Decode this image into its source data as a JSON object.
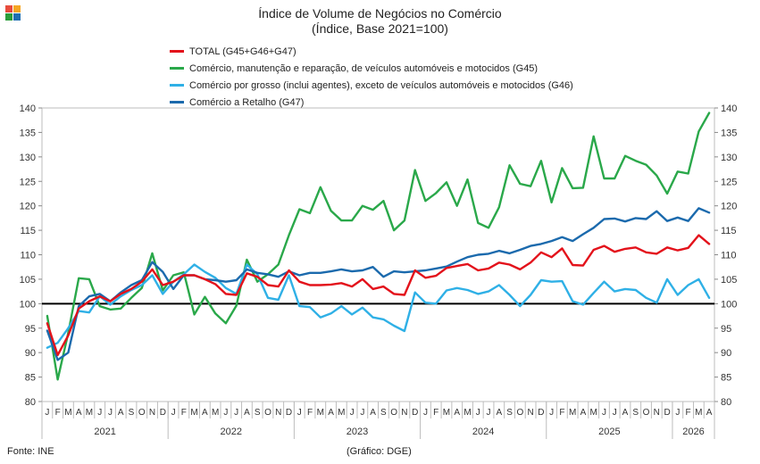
{
  "title": "Índice de Volume de Negócios no Comércio",
  "subtitle": "(Índice, Base 2021=100)",
  "source": "Fonte: INE",
  "credit": "(Gráfico: DGE)",
  "colors": {
    "logo": [
      "#e84c3d",
      "#f5a623",
      "#2a9d3a",
      "#1f6fb2"
    ]
  },
  "chart_data": {
    "type": "line",
    "ylim": [
      80,
      140
    ],
    "yticks": [
      80,
      85,
      90,
      95,
      100,
      105,
      110,
      115,
      120,
      125,
      130,
      135,
      140
    ],
    "reference_line": 100,
    "month_labels": [
      "J",
      "F",
      "M",
      "A",
      "M",
      "J",
      "J",
      "A",
      "S",
      "O",
      "N",
      "D",
      "J",
      "F",
      "M",
      "A",
      "M",
      "J",
      "J",
      "A",
      "S",
      "O",
      "N",
      "D",
      "J",
      "F",
      "M",
      "A",
      "M",
      "J",
      "J",
      "A",
      "S",
      "O",
      "N",
      "D",
      "J",
      "F",
      "M",
      "A",
      "M",
      "J",
      "J",
      "A",
      "S",
      "O",
      "N",
      "D",
      "J",
      "F",
      "M",
      "A",
      "M",
      "J",
      "J",
      "A",
      "S",
      "O",
      "N",
      "D",
      "J",
      "F",
      "M",
      "A"
    ],
    "years": [
      {
        "label": "2021",
        "months": 12
      },
      {
        "label": "2022",
        "months": 12
      },
      {
        "label": "2023",
        "months": 12
      },
      {
        "label": "2024",
        "months": 12
      },
      {
        "label": "2025",
        "months": 12
      },
      {
        "label": "2026",
        "months": 4
      }
    ],
    "series": [
      {
        "name": "TOTAL (G45+G46+G47)",
        "color": "#e3121b",
        "values": [
          96.0,
          89.5,
          93.5,
          99.0,
          100.5,
          101.5,
          100.5,
          102.0,
          103.0,
          104.5,
          107.0,
          103.8,
          104.5,
          105.8,
          105.8,
          105.0,
          104.0,
          102.0,
          101.8,
          106.2,
          105.5,
          103.8,
          103.5,
          106.8,
          104.5,
          103.8,
          103.8,
          103.9,
          104.2,
          103.5,
          105.0,
          103.0,
          103.5,
          102.0,
          101.8,
          106.8,
          105.3,
          105.7,
          107.3,
          107.7,
          108.1,
          106.8,
          107.2,
          108.4,
          108.0,
          107.0,
          108.4,
          110.5,
          109.5,
          111.3,
          107.9,
          107.8,
          111.0,
          111.8,
          110.6,
          111.2,
          111.5,
          110.5,
          110.2,
          111.5,
          110.9,
          111.4,
          114.0,
          112.2
        ]
      },
      {
        "name": "Comércio, manutenção e reparação, de veículos automóveis e motocidos (G45)",
        "color": "#2aa84a",
        "values": [
          97.5,
          84.5,
          94.0,
          105.2,
          105.0,
          99.5,
          98.8,
          99.0,
          101.2,
          103.2,
          110.3,
          102.7,
          105.8,
          106.4,
          97.8,
          101.4,
          98.0,
          96.0,
          99.6,
          109.0,
          104.5,
          106.0,
          108.0,
          114.0,
          119.3,
          118.5,
          123.8,
          119.0,
          117.0,
          117.0,
          120.0,
          119.2,
          121.0,
          115.0,
          117.0,
          127.3,
          121.0,
          122.6,
          124.8,
          120.0,
          125.4,
          116.5,
          115.5,
          119.7,
          128.3,
          124.5,
          124.0,
          129.2,
          120.7,
          127.7,
          123.6,
          123.7,
          134.2,
          125.6,
          125.6,
          130.2,
          129.2,
          128.4,
          126.2,
          122.5,
          127.0,
          126.6,
          135.2,
          139.0
        ]
      },
      {
        "name": "Comércio por grosso (inclui agentes), exceto de veículos automóveis e motocidos (G46)",
        "color": "#2fb0e6",
        "values": [
          91.0,
          92.0,
          95.0,
          98.5,
          98.2,
          101.5,
          99.8,
          101.5,
          102.8,
          103.8,
          105.8,
          102.0,
          104.5,
          106.0,
          108.0,
          106.5,
          105.3,
          103.2,
          102.0,
          108.0,
          106.0,
          101.2,
          100.8,
          105.8,
          99.5,
          99.3,
          97.2,
          98.0,
          99.5,
          97.8,
          99.2,
          97.2,
          96.8,
          95.5,
          94.4,
          102.3,
          100.2,
          100.0,
          102.7,
          103.2,
          102.8,
          102.0,
          102.5,
          103.8,
          101.8,
          99.5,
          101.8,
          104.8,
          104.5,
          104.6,
          100.5,
          99.8,
          102.2,
          104.5,
          102.5,
          103.0,
          102.8,
          101.2,
          100.2,
          105.0,
          101.8,
          103.8,
          105.0,
          101.2
        ]
      },
      {
        "name": "Comércio a Retalho (G47)",
        "color": "#1b6aad",
        "values": [
          94.5,
          88.5,
          90.0,
          99.5,
          101.5,
          102.0,
          100.5,
          102.3,
          103.8,
          104.8,
          108.5,
          106.5,
          103.0,
          105.8,
          105.8,
          105.0,
          104.8,
          104.5,
          104.8,
          107.0,
          106.3,
          106.0,
          105.5,
          106.6,
          105.8,
          106.3,
          106.3,
          106.6,
          107.0,
          106.6,
          106.8,
          107.5,
          105.5,
          106.6,
          106.4,
          106.6,
          106.8,
          107.2,
          107.6,
          108.6,
          109.5,
          110.0,
          110.2,
          110.8,
          110.3,
          111.0,
          111.8,
          112.2,
          112.8,
          113.6,
          112.8,
          114.2,
          115.5,
          117.3,
          117.4,
          116.8,
          117.5,
          117.3,
          118.9,
          116.9,
          117.6,
          116.9,
          119.5,
          118.6
        ]
      }
    ]
  }
}
